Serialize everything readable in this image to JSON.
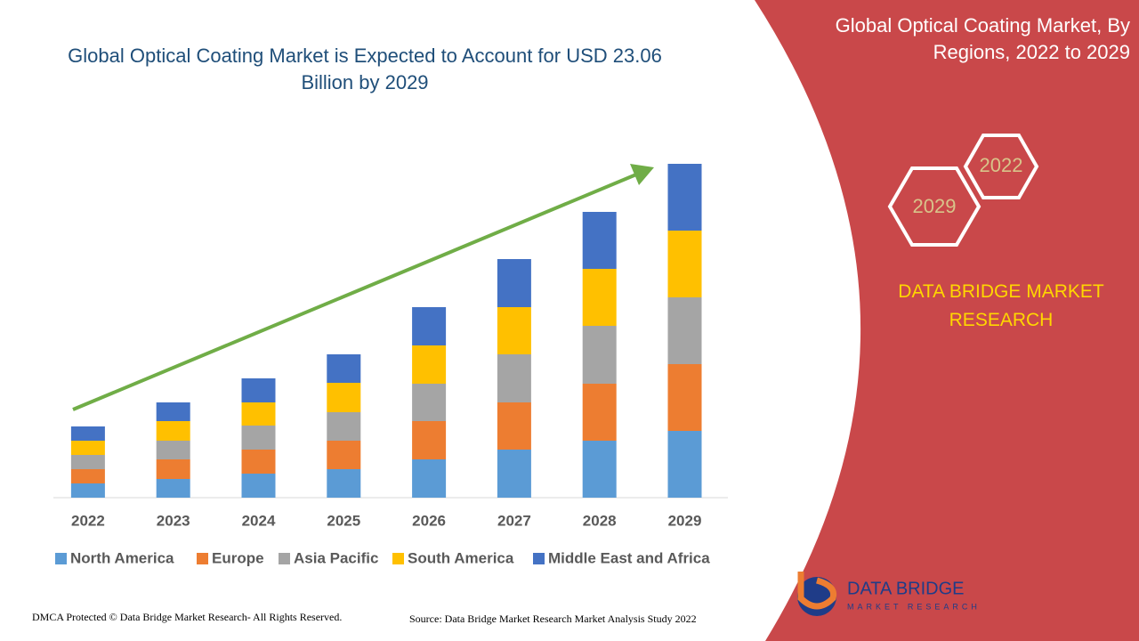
{
  "chart_data": {
    "type": "stacked_bar",
    "title": "Global Optical Coating Market is Expected to Account for USD 23.06 Billion by 2029",
    "categories": [
      "2022",
      "2023",
      "2024",
      "2025",
      "2026",
      "2027",
      "2028",
      "2029"
    ],
    "series": [
      {
        "name": "North America",
        "color": "#5b9bd5",
        "values": [
          16,
          21,
          27,
          32,
          43,
          54,
          64,
          75
        ]
      },
      {
        "name": "Europe",
        "color": "#ed7d31",
        "values": [
          16,
          22,
          27,
          32,
          43,
          53,
          64,
          75
        ]
      },
      {
        "name": "Asia Pacific",
        "color": "#a5a5a5",
        "values": [
          16,
          21,
          27,
          32,
          42,
          54,
          65,
          75
        ]
      },
      {
        "name": "South America",
        "color": "#ffc000",
        "values": [
          16,
          22,
          26,
          33,
          43,
          53,
          64,
          75
        ]
      },
      {
        "name": "Middle East and Africa",
        "color": "#4472c4",
        "values": [
          16,
          21,
          27,
          32,
          43,
          54,
          64,
          75
        ]
      }
    ]
  },
  "panel": {
    "title": "Global Optical Coating Market, By Regions, 2022 to 2029",
    "hex_labels": [
      "2022",
      "2029"
    ],
    "brand": "DATA BRIDGE MARKET RESEARCH"
  },
  "logo": {
    "name": "DATA BRIDGE",
    "tagline": "MARKET RESEARCH"
  },
  "footer": {
    "copyright": "DMCA Protected © Data Bridge Market Research- All Rights Reserved.",
    "source": "Source: Data Bridge Market Research Market Analysis Study 2022"
  }
}
